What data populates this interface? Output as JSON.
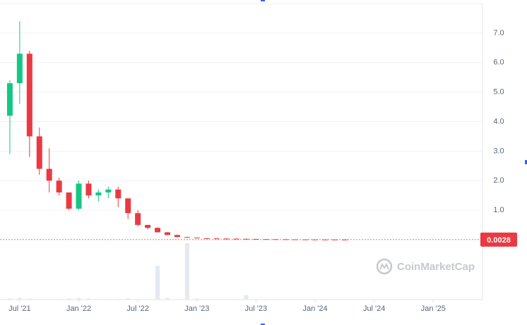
{
  "chart_data": {
    "type": "candlestick",
    "x": [
      "2021-06",
      "2021-07",
      "2021-08",
      "2021-09",
      "2021-10",
      "2021-11",
      "2021-12",
      "2022-01",
      "2022-02",
      "2022-03",
      "2022-04",
      "2022-05",
      "2022-06",
      "2022-07",
      "2022-08",
      "2022-09",
      "2022-10",
      "2022-11",
      "2022-12",
      "2023-01",
      "2023-02",
      "2023-03",
      "2023-04",
      "2023-05",
      "2023-06",
      "2023-07",
      "2023-08",
      "2023-09",
      "2023-10",
      "2023-11",
      "2023-12",
      "2024-01",
      "2024-02",
      "2024-03",
      "2024-04"
    ],
    "open": [
      4.2,
      5.3,
      6.3,
      3.5,
      2.4,
      2.0,
      1.6,
      1.05,
      1.9,
      1.5,
      1.6,
      1.7,
      1.4,
      0.9,
      0.5,
      0.4,
      0.25,
      0.16,
      0.09,
      0.07,
      0.05,
      0.045,
      0.04,
      0.035,
      0.03,
      0.025,
      0.02,
      0.018,
      0.015,
      0.012,
      0.01,
      0.008,
      0.006,
      0.005,
      0.004
    ],
    "high": [
      5.4,
      7.4,
      6.4,
      3.8,
      3.1,
      2.1,
      1.6,
      2.0,
      2.0,
      1.7,
      1.8,
      1.8,
      1.4,
      1.0,
      0.5,
      0.42,
      0.26,
      0.17,
      0.1,
      0.08,
      0.055,
      0.05,
      0.045,
      0.04,
      0.033,
      0.028,
      0.022,
      0.02,
      0.017,
      0.013,
      0.011,
      0.009,
      0.007,
      0.0055,
      0.0045
    ],
    "low": [
      2.9,
      4.6,
      2.8,
      2.2,
      1.6,
      1.5,
      1.0,
      1.0,
      1.4,
      1.3,
      1.4,
      1.1,
      0.7,
      0.45,
      0.35,
      0.25,
      0.15,
      0.08,
      0.06,
      0.05,
      0.044,
      0.039,
      0.034,
      0.029,
      0.024,
      0.019,
      0.017,
      0.014,
      0.011,
      0.009,
      0.007,
      0.005,
      0.0045,
      0.0035,
      0.0025
    ],
    "close": [
      5.3,
      6.3,
      3.5,
      2.4,
      2.0,
      1.6,
      1.05,
      1.9,
      1.5,
      1.6,
      1.7,
      1.4,
      0.9,
      0.5,
      0.4,
      0.25,
      0.16,
      0.09,
      0.07,
      0.05,
      0.045,
      0.04,
      0.035,
      0.03,
      0.025,
      0.02,
      0.018,
      0.015,
      0.012,
      0.01,
      0.008,
      0.006,
      0.005,
      0.004,
      0.0028
    ],
    "volume": [
      2,
      3,
      2,
      1,
      1,
      1,
      2,
      3,
      2,
      1,
      1,
      1,
      2,
      1,
      1,
      60,
      3,
      1,
      100,
      2,
      1,
      1,
      1,
      1,
      8,
      1,
      1,
      1,
      1,
      1,
      1,
      1,
      1,
      1,
      1
    ],
    "up_color": "#16c784",
    "down_color": "#ea3943",
    "volume_color": "#e3e9f0",
    "xlim": [
      "2021-05",
      "2025-06"
    ],
    "xticks": [
      {
        "value": "2021-07",
        "label": "Jul '21"
      },
      {
        "value": "2022-01",
        "label": "Jan '22"
      },
      {
        "value": "2022-07",
        "label": "Jul '22"
      },
      {
        "value": "2023-01",
        "label": "Jan '23"
      },
      {
        "value": "2023-07",
        "label": "Jul '23"
      },
      {
        "value": "2024-01",
        "label": "Jan '24"
      },
      {
        "value": "2024-07",
        "label": "Jul '24"
      },
      {
        "value": "2025-01",
        "label": "Jan '25"
      }
    ],
    "ylim": [
      0,
      8
    ],
    "yticks": [
      {
        "value": 1,
        "label": "1.0"
      },
      {
        "value": 2,
        "label": "2.0"
      },
      {
        "value": 3,
        "label": "3.0"
      },
      {
        "value": 4,
        "label": "4.0"
      },
      {
        "value": 5,
        "label": "5.0"
      },
      {
        "value": 6,
        "label": "6.0"
      },
      {
        "value": 7,
        "label": "7.0"
      }
    ],
    "grid": true,
    "last_price": 0.0028,
    "watermark": "CoinMarketCap"
  }
}
